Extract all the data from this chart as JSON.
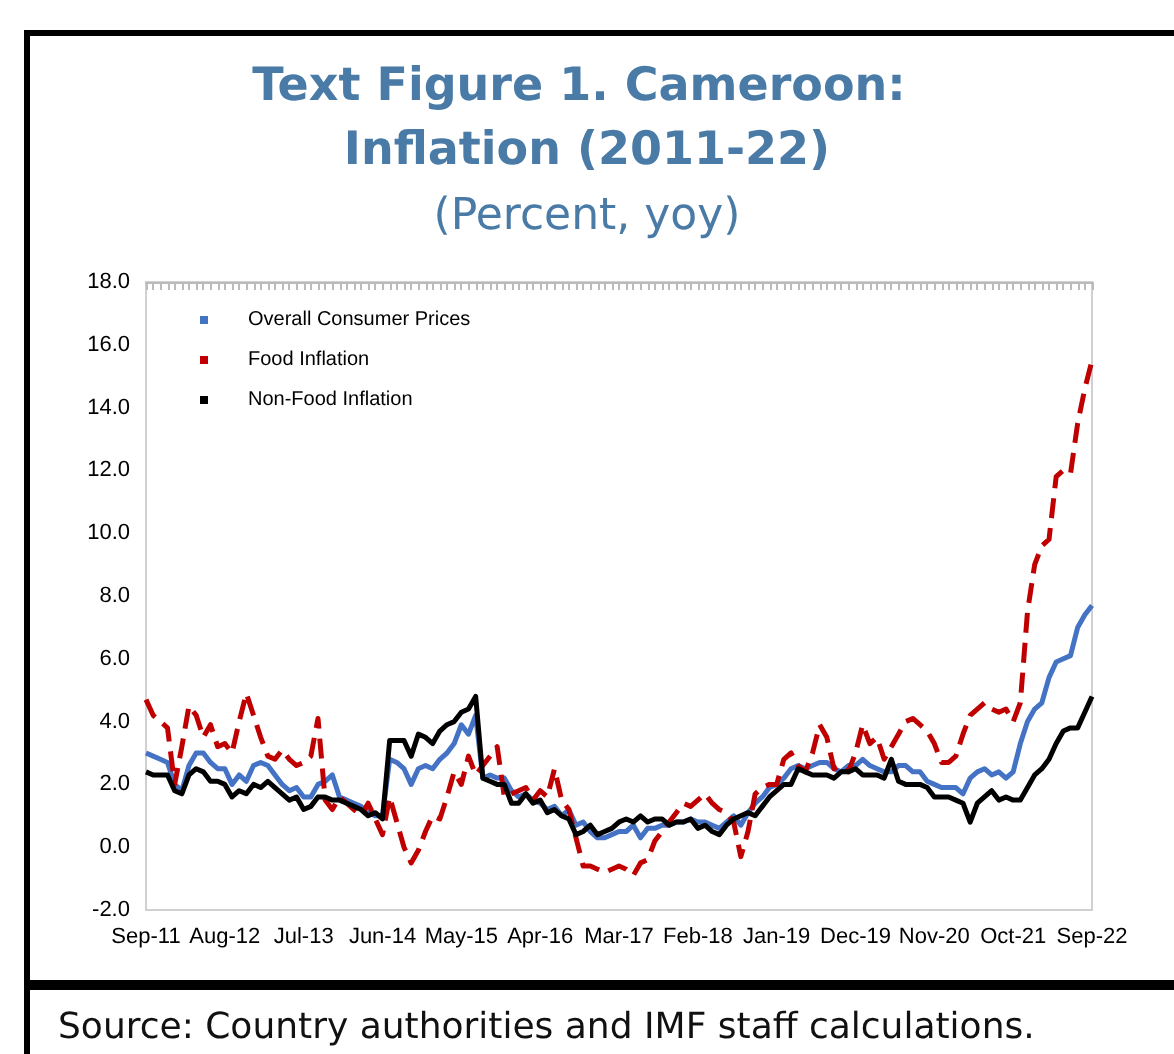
{
  "chart_data": {
    "type": "line",
    "title": "Text Figure 1. Cameroon: Inflation (2011-22)",
    "subtitle": "(Percent, yoy)",
    "annotations": [
      "Source: Country authorities and IMF staff calculations."
    ],
    "categories": [
      "Sep-11",
      null,
      null,
      null,
      null,
      null,
      null,
      null,
      null,
      null,
      null,
      "Aug-12",
      null,
      null,
      null,
      null,
      null,
      null,
      null,
      null,
      null,
      null,
      "Jul-13",
      null,
      null,
      null,
      null,
      null,
      null,
      null,
      null,
      null,
      null,
      "Jun-14",
      null,
      null,
      null,
      null,
      null,
      null,
      null,
      null,
      null,
      null,
      "May-15",
      null,
      null,
      null,
      null,
      null,
      null,
      null,
      null,
      null,
      null,
      "Apr-16",
      null,
      null,
      null,
      null,
      null,
      null,
      null,
      null,
      null,
      null,
      "Mar-17",
      null,
      null,
      null,
      null,
      null,
      null,
      null,
      null,
      null,
      null,
      "Feb-18",
      null,
      null,
      null,
      null,
      null,
      null,
      null,
      null,
      null,
      null,
      "Jan-19",
      null,
      null,
      null,
      null,
      null,
      null,
      null,
      null,
      null,
      null,
      "Dec-19",
      null,
      null,
      null,
      null,
      null,
      null,
      null,
      null,
      null,
      null,
      "Nov-20",
      null,
      null,
      null,
      null,
      null,
      null,
      null,
      null,
      null,
      null,
      "Oct-21",
      null,
      null,
      null,
      null,
      null,
      null,
      null,
      null,
      null,
      null,
      "Sep-22"
    ],
    "series": [
      {
        "name": "Overall Consumer Prices",
        "color": "#4472c4",
        "line_style": "solid",
        "values": [
          3.0,
          2.9,
          2.8,
          2.7,
          2.0,
          1.8,
          2.6,
          3.0,
          3.0,
          2.7,
          2.5,
          2.5,
          2.0,
          2.3,
          2.1,
          2.6,
          2.7,
          2.6,
          2.3,
          2.0,
          1.8,
          1.9,
          1.6,
          1.6,
          2.0,
          2.1,
          2.3,
          1.6,
          1.5,
          1.4,
          1.3,
          1.1,
          1.0,
          1.0,
          2.8,
          2.7,
          2.5,
          2.0,
          2.5,
          2.6,
          2.5,
          2.8,
          3.0,
          3.3,
          3.9,
          3.6,
          4.2,
          2.2,
          2.3,
          2.2,
          2.2,
          1.8,
          1.6,
          1.7,
          1.5,
          1.4,
          1.2,
          1.3,
          1.0,
          1.2,
          0.7,
          0.8,
          0.5,
          0.3,
          0.3,
          0.4,
          0.5,
          0.5,
          0.7,
          0.3,
          0.6,
          0.6,
          0.7,
          0.7,
          0.8,
          0.8,
          0.9,
          0.8,
          0.8,
          0.7,
          0.6,
          0.8,
          1.0,
          0.7,
          1.1,
          1.4,
          1.6,
          1.9,
          2.0,
          2.2,
          2.5,
          2.6,
          2.5,
          2.6,
          2.7,
          2.7,
          2.5,
          2.4,
          2.6,
          2.6,
          2.8,
          2.6,
          2.5,
          2.4,
          2.4,
          2.6,
          2.6,
          2.4,
          2.4,
          2.1,
          2.0,
          1.9,
          1.9,
          1.9,
          1.7,
          2.2,
          2.4,
          2.5,
          2.3,
          2.4,
          2.2,
          2.4,
          3.3,
          4.0,
          4.4,
          4.6,
          5.4,
          5.9,
          6.0,
          6.1,
          7.0,
          7.4,
          7.7
        ]
      },
      {
        "name": "Food Inflation",
        "color": "#c00000",
        "line_style": "dashed",
        "values": [
          4.7,
          4.2,
          4.0,
          3.8,
          2.0,
          3.2,
          4.5,
          4.2,
          3.5,
          3.9,
          3.2,
          3.3,
          3.0,
          4.0,
          4.9,
          4.2,
          3.5,
          2.9,
          2.8,
          3.1,
          2.8,
          2.6,
          2.7,
          2.9,
          4.1,
          1.5,
          1.2,
          1.6,
          1.4,
          1.2,
          1.0,
          1.4,
          0.9,
          0.4,
          1.6,
          0.8,
          0.0,
          -0.5,
          -0.1,
          0.5,
          1.0,
          0.9,
          1.6,
          2.4,
          2.0,
          2.9,
          2.3,
          2.6,
          2.9,
          3.2,
          1.6,
          1.7,
          1.8,
          1.9,
          1.5,
          1.8,
          1.6,
          2.5,
          1.5,
          1.2,
          0.3,
          -0.6,
          -0.6,
          -0.7,
          -0.8,
          -0.7,
          -0.6,
          -0.7,
          -0.9,
          -0.5,
          -0.4,
          0.2,
          0.5,
          0.8,
          1.1,
          1.4,
          1.3,
          1.5,
          1.7,
          1.4,
          1.2,
          1.1,
          0.8,
          -0.3,
          0.5,
          1.7,
          1.9,
          2.0,
          2.0,
          2.8,
          3.0,
          2.6,
          2.4,
          3.0,
          3.9,
          3.5,
          2.5,
          2.6,
          2.4,
          3.0,
          3.9,
          3.3,
          3.5,
          2.8,
          3.2,
          3.6,
          4.0,
          4.1,
          3.9,
          3.7,
          3.3,
          2.7,
          2.7,
          2.9,
          3.6,
          4.2,
          4.4,
          4.6,
          4.4,
          4.3,
          4.4,
          4.0,
          4.6,
          7.5,
          9.0,
          9.6,
          9.8,
          11.8,
          12.0,
          11.9,
          13.5,
          14.6,
          15.5
        ]
      },
      {
        "name": "Non-Food Inflation",
        "color": "#000000",
        "line_style": "solid",
        "values": [
          2.4,
          2.3,
          2.3,
          2.3,
          1.8,
          1.7,
          2.3,
          2.5,
          2.4,
          2.1,
          2.1,
          2.0,
          1.6,
          1.8,
          1.7,
          2.0,
          1.9,
          2.1,
          1.9,
          1.7,
          1.5,
          1.6,
          1.2,
          1.3,
          1.6,
          1.6,
          1.5,
          1.5,
          1.4,
          1.3,
          1.2,
          1.0,
          1.1,
          0.9,
          3.4,
          3.4,
          3.4,
          2.9,
          3.6,
          3.5,
          3.3,
          3.7,
          3.9,
          4.0,
          4.3,
          4.4,
          4.8,
          2.2,
          2.1,
          2.0,
          2.0,
          1.4,
          1.4,
          1.7,
          1.4,
          1.5,
          1.1,
          1.2,
          1.0,
          0.9,
          0.4,
          0.5,
          0.7,
          0.4,
          0.5,
          0.6,
          0.8,
          0.9,
          0.8,
          1.0,
          0.8,
          0.9,
          0.9,
          0.7,
          0.8,
          0.8,
          0.9,
          0.6,
          0.7,
          0.5,
          0.4,
          0.7,
          0.9,
          1.0,
          1.1,
          1.0,
          1.3,
          1.6,
          1.8,
          2.0,
          2.0,
          2.5,
          2.4,
          2.3,
          2.3,
          2.3,
          2.2,
          2.4,
          2.4,
          2.5,
          2.3,
          2.3,
          2.3,
          2.2,
          2.8,
          2.1,
          2.0,
          2.0,
          2.0,
          1.9,
          1.6,
          1.6,
          1.6,
          1.5,
          1.4,
          0.8,
          1.4,
          1.6,
          1.8,
          1.5,
          1.6,
          1.5,
          1.5,
          1.9,
          2.3,
          2.5,
          2.8,
          3.3,
          3.7,
          3.8,
          3.8,
          4.3,
          4.8
        ]
      }
    ],
    "ylim": [
      -2,
      18
    ],
    "yticks": [
      {
        "value": -2,
        "label": "-2.0"
      },
      {
        "value": 0,
        "label": "0.0"
      },
      {
        "value": 2,
        "label": "2.0"
      },
      {
        "value": 4,
        "label": "4.0"
      },
      {
        "value": 6,
        "label": "6.0"
      },
      {
        "value": 8,
        "label": "8.0"
      },
      {
        "value": 10,
        "label": "10.0"
      },
      {
        "value": 12,
        "label": "12.0"
      },
      {
        "value": 14,
        "label": "14.0"
      },
      {
        "value": 16,
        "label": "16.0"
      },
      {
        "value": 18,
        "label": "18.0"
      }
    ],
    "grid": false,
    "legend": "top left",
    "marker": "none"
  }
}
